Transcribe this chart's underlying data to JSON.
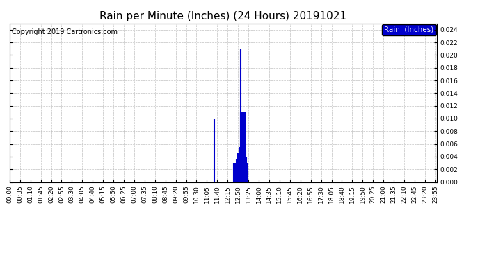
{
  "title": "Rain per Minute (Inches) (24 Hours) 20191021",
  "copyright": "Copyright 2019 Cartronics.com",
  "legend_label": "Rain  (Inches)",
  "legend_bg": "#0000CC",
  "legend_fg": "#FFFFFF",
  "bar_color": "#0000CC",
  "background_color": "#FFFFFF",
  "grid_color": "#C0C0C0",
  "baseline_color": "#0000CC",
  "ylim": [
    0.0,
    0.025
  ],
  "ytick_max": 0.024,
  "ytick_step": 0.002,
  "total_minutes": 1440,
  "rain_events": [
    {
      "minute": 690,
      "value": 0.01
    },
    {
      "minute": 755,
      "value": 0.003
    },
    {
      "minute": 760,
      "value": 0.003
    },
    {
      "minute": 765,
      "value": 0.0035
    },
    {
      "minute": 770,
      "value": 0.0045
    },
    {
      "minute": 775,
      "value": 0.0055
    },
    {
      "minute": 778,
      "value": 0.021
    },
    {
      "minute": 780,
      "value": 0.011
    },
    {
      "minute": 782,
      "value": 0.011
    },
    {
      "minute": 784,
      "value": 0.011
    },
    {
      "minute": 786,
      "value": 0.011
    },
    {
      "minute": 788,
      "value": 0.011
    },
    {
      "minute": 790,
      "value": 0.011
    },
    {
      "minute": 792,
      "value": 0.011
    },
    {
      "minute": 794,
      "value": 0.011
    },
    {
      "minute": 796,
      "value": 0.005
    },
    {
      "minute": 798,
      "value": 0.004
    },
    {
      "minute": 800,
      "value": 0.003
    },
    {
      "minute": 802,
      "value": 0.002
    }
  ],
  "xtick_interval": 35,
  "title_fontsize": 11,
  "axis_fontsize": 6.5,
  "copyright_fontsize": 7,
  "legend_fontsize": 7.5
}
